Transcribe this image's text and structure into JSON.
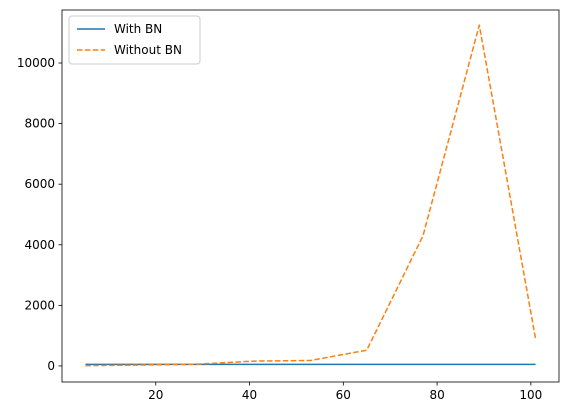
{
  "chart_data": {
    "type": "line",
    "x": [
      5,
      17,
      29,
      41,
      53,
      65,
      77,
      89,
      101
    ],
    "series": [
      {
        "name": "With BN",
        "color": "#1f77b4",
        "style": "solid",
        "values": [
          50,
          50,
          50,
          50,
          50,
          50,
          50,
          50,
          50
        ]
      },
      {
        "name": "Without BN",
        "color": "#ff7f0e",
        "style": "dashed",
        "values": [
          10,
          30,
          60,
          160,
          180,
          520,
          4300,
          11250,
          900
        ]
      }
    ],
    "xlim": [
      0,
      106
    ],
    "ylim": [
      -530,
      11750
    ],
    "xticks": [
      20,
      40,
      60,
      80,
      100
    ],
    "yticks": [
      0,
      2000,
      4000,
      6000,
      8000,
      10000
    ],
    "grid": false,
    "legend_position": "top-left",
    "title": "",
    "xlabel": "",
    "ylabel": ""
  }
}
